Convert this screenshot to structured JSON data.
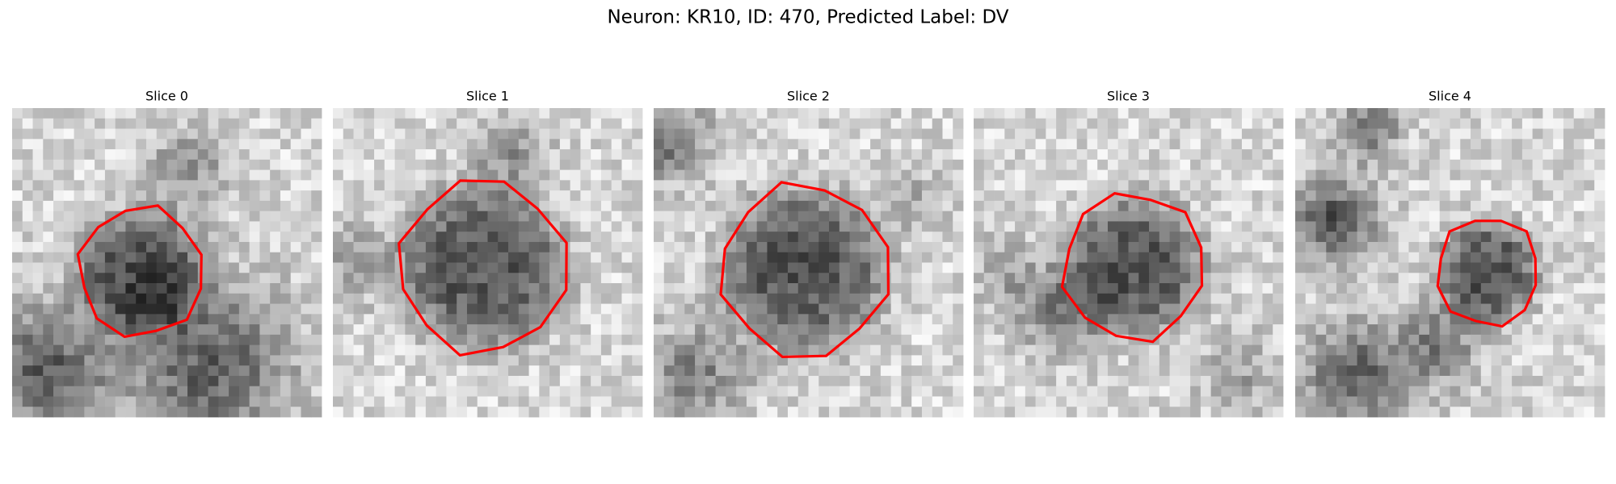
{
  "title": "Neuron: KR10, ID: 470, Predicted Label: DV",
  "panels": [
    {
      "title": "Slice 0"
    },
    {
      "title": "Slice 1"
    },
    {
      "title": "Slice 2"
    },
    {
      "title": "Slice 3"
    },
    {
      "title": "Slice 4"
    }
  ]
}
